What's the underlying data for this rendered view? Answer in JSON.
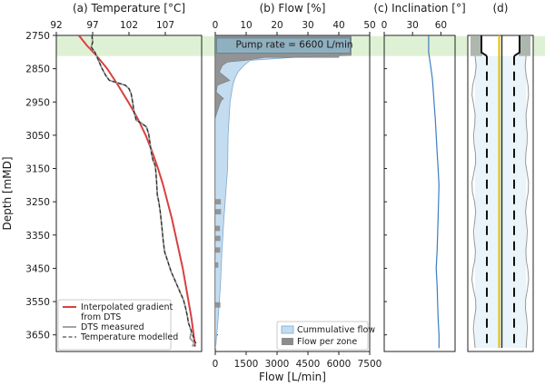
{
  "chart_data": [
    {
      "panel": "a",
      "type": "line",
      "title": "(a) Temperature [°C]",
      "ylabel": "Depth [mMD]",
      "xlim": [
        92,
        112
      ],
      "xticks": [
        92,
        97,
        102,
        107
      ],
      "ylim": [
        2750,
        3700
      ],
      "yticks": [
        2750,
        2850,
        2950,
        3050,
        3150,
        3250,
        3350,
        3450,
        3550,
        3650
      ],
      "legend": "bottom-left",
      "series": [
        {
          "name": "Interpolated gradient from DTS",
          "legend_lines": [
            "Interpolated gradient",
            "from DTS"
          ],
          "color": "#d94040",
          "style": "solid",
          "points": [
            [
              95.1,
              2750
            ],
            [
              96.2,
              2780
            ],
            [
              97.5,
              2810
            ],
            [
              99.0,
              2850
            ],
            [
              100.5,
              2900
            ],
            [
              101.9,
              2950
            ],
            [
              103.2,
              3000
            ],
            [
              104.3,
              3050
            ],
            [
              105.2,
              3100
            ],
            [
              106.0,
              3150
            ],
            [
              106.7,
              3200
            ],
            [
              107.3,
              3250
            ],
            [
              107.9,
              3300
            ],
            [
              108.4,
              3350
            ],
            [
              108.9,
              3400
            ],
            [
              109.4,
              3450
            ],
            [
              109.8,
              3500
            ],
            [
              110.2,
              3550
            ],
            [
              110.6,
              3600
            ],
            [
              110.9,
              3650
            ],
            [
              111.1,
              3685
            ]
          ]
        },
        {
          "name": "DTS measured",
          "color": "#9a9a9a",
          "style": "solid",
          "points": [
            [
              96.9,
              2750
            ],
            [
              97.0,
              2770
            ],
            [
              96.8,
              2785
            ],
            [
              97.3,
              2800
            ],
            [
              97.6,
              2815
            ],
            [
              97.9,
              2830
            ],
            [
              98.3,
              2850
            ],
            [
              98.8,
              2870
            ],
            [
              99.3,
              2885
            ],
            [
              100.5,
              2893
            ],
            [
              101.5,
              2900
            ],
            [
              102.0,
              2910
            ],
            [
              102.3,
              2925
            ],
            [
              102.5,
              2950
            ],
            [
              102.7,
              2980
            ],
            [
              103.0,
              3005
            ],
            [
              103.8,
              3015
            ],
            [
              104.4,
              3025
            ],
            [
              104.7,
              3045
            ],
            [
              104.9,
              3075
            ],
            [
              105.1,
              3105
            ],
            [
              105.3,
              3125
            ],
            [
              105.6,
              3140
            ],
            [
              105.7,
              3160
            ],
            [
              105.8,
              3190
            ],
            [
              105.9,
              3230
            ],
            [
              106.1,
              3250
            ],
            [
              106.3,
              3280
            ],
            [
              106.5,
              3320
            ],
            [
              106.7,
              3365
            ],
            [
              106.9,
              3400
            ],
            [
              107.2,
              3420
            ],
            [
              107.5,
              3440
            ],
            [
              107.8,
              3460
            ],
            [
              108.2,
              3480
            ],
            [
              108.6,
              3500
            ],
            [
              109.0,
              3520
            ],
            [
              109.5,
              3545
            ],
            [
              109.8,
              3570
            ],
            [
              110.0,
              3590
            ],
            [
              110.2,
              3615
            ],
            [
              110.6,
              3640
            ],
            [
              110.4,
              3660
            ],
            [
              111.0,
              3675
            ],
            [
              110.7,
              3685
            ]
          ]
        },
        {
          "name": "Temperature modelled",
          "color": "#222222",
          "style": "dashed",
          "points": [
            [
              96.9,
              2750
            ],
            [
              97.0,
              2770
            ],
            [
              96.8,
              2785
            ],
            [
              97.3,
              2800
            ],
            [
              97.6,
              2815
            ],
            [
              97.9,
              2830
            ],
            [
              98.3,
              2850
            ],
            [
              98.8,
              2870
            ],
            [
              99.3,
              2885
            ],
            [
              100.5,
              2893
            ],
            [
              101.5,
              2900
            ],
            [
              102.0,
              2910
            ],
            [
              102.3,
              2925
            ],
            [
              102.5,
              2950
            ],
            [
              102.7,
              2980
            ],
            [
              103.0,
              3005
            ],
            [
              103.8,
              3015
            ],
            [
              104.4,
              3025
            ],
            [
              104.7,
              3045
            ],
            [
              104.9,
              3075
            ],
            [
              105.1,
              3105
            ],
            [
              105.3,
              3125
            ],
            [
              105.6,
              3140
            ],
            [
              105.7,
              3160
            ],
            [
              105.8,
              3190
            ],
            [
              105.9,
              3230
            ],
            [
              106.1,
              3250
            ],
            [
              106.3,
              3280
            ],
            [
              106.5,
              3320
            ],
            [
              106.7,
              3365
            ],
            [
              106.9,
              3400
            ],
            [
              107.2,
              3420
            ],
            [
              107.5,
              3440
            ],
            [
              107.8,
              3460
            ],
            [
              108.2,
              3480
            ],
            [
              108.6,
              3500
            ],
            [
              109.0,
              3520
            ],
            [
              109.5,
              3545
            ],
            [
              109.8,
              3570
            ],
            [
              110.0,
              3590
            ],
            [
              110.2,
              3615
            ],
            [
              110.6,
              3640
            ],
            [
              110.9,
              3660
            ],
            [
              111.2,
              3675
            ],
            [
              111.0,
              3685
            ]
          ]
        }
      ]
    },
    {
      "panel": "b",
      "type": "area",
      "title": "(b) Flow [%]",
      "xlabel": "Flow [L/min]",
      "xlim_top": [
        0,
        50
      ],
      "xticks_top": [
        0,
        10,
        20,
        30,
        40,
        50
      ],
      "xlim_bottom": [
        0,
        7500
      ],
      "xticks_bottom": [
        0,
        1500,
        3000,
        4500,
        6000,
        7500
      ],
      "annotation": "Pump rate = 6600 L/min",
      "legend": "bottom-right",
      "series": [
        {
          "name": "Cummulative flow",
          "color": "#c4dcef",
          "points": [
            [
              6600,
              2752
            ],
            [
              6600,
              2775
            ],
            [
              6300,
              2800
            ],
            [
              6000,
              2810
            ],
            [
              4000,
              2815
            ],
            [
              1700,
              2825
            ],
            [
              1400,
              2840
            ],
            [
              1100,
              2860
            ],
            [
              950,
              2880
            ],
            [
              850,
              2900
            ],
            [
              720,
              2950
            ],
            [
              620,
              3050
            ],
            [
              600,
              3150
            ],
            [
              540,
              3200
            ],
            [
              480,
              3250
            ],
            [
              420,
              3300
            ],
            [
              320,
              3400
            ],
            [
              250,
              3500
            ],
            [
              140,
              3600
            ],
            [
              30,
              3680
            ],
            [
              0,
              3690
            ]
          ]
        },
        {
          "name": "Flow per zone",
          "color": "#8c8c8c",
          "points": [
            [
              0,
              2752
            ],
            [
              6600,
              2752
            ],
            [
              6600,
              2810
            ],
            [
              6000,
              2811
            ],
            [
              6000,
              2816
            ],
            [
              2400,
              2816
            ],
            [
              1500,
              2825
            ],
            [
              600,
              2830
            ],
            [
              350,
              2840
            ],
            [
              200,
              2860
            ],
            [
              700,
              2885
            ],
            [
              100,
              2900
            ],
            [
              50,
              2920
            ],
            [
              400,
              2940
            ],
            [
              300,
              2945
            ],
            [
              200,
              2960
            ],
            [
              40,
              2990
            ],
            [
              0,
              3000
            ]
          ],
          "extra_spikes": [
            [
              3250,
              270
            ],
            [
              3280,
              280
            ],
            [
              3330,
              230
            ],
            [
              3360,
              250
            ],
            [
              3395,
              240
            ],
            [
              3440,
              150
            ],
            [
              3560,
              250
            ]
          ]
        }
      ]
    },
    {
      "panel": "c",
      "type": "line",
      "title": "(c) Inclination [°]",
      "xlim": [
        0,
        75
      ],
      "xticks": [
        0,
        30,
        60
      ],
      "series": [
        {
          "name": "Inclination",
          "color": "#3b7ec4",
          "points": [
            [
              47,
              2752
            ],
            [
              47,
              2800
            ],
            [
              48,
              2820
            ],
            [
              49,
              2840
            ],
            [
              50,
              2860
            ],
            [
              51,
              2880
            ],
            [
              52,
              2920
            ],
            [
              53,
              2960
            ],
            [
              54,
              3000
            ],
            [
              55,
              3050
            ],
            [
              56,
              3100
            ],
            [
              57,
              3150
            ],
            [
              58,
              3200
            ],
            [
              57,
              3300
            ],
            [
              56,
              3400
            ],
            [
              55,
              3450
            ],
            [
              56,
              3500
            ],
            [
              57,
              3600
            ],
            [
              58,
              3650
            ],
            [
              58,
              3690
            ]
          ]
        }
      ]
    },
    {
      "panel": "d",
      "type": "diagram",
      "title": "(d)"
    }
  ]
}
